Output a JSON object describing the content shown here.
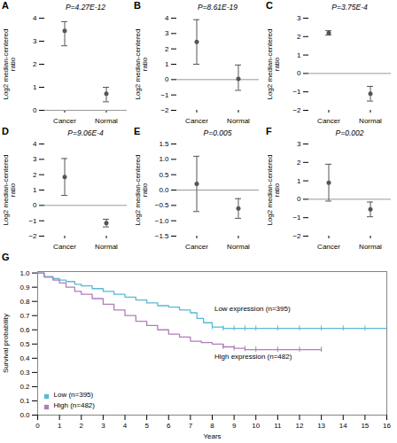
{
  "chart_data": [
    {
      "type": "errorbar",
      "title": "A",
      "subtitle": "P=4.27E-12",
      "ylabel": "Log2 median-centered\nratio",
      "categories": [
        "Cancer",
        "Normal"
      ],
      "values": [
        3.45,
        0.72
      ],
      "error_low": [
        0.65,
        0.35
      ],
      "error_high": [
        0.4,
        0.28
      ],
      "color": "#555555",
      "hline": 0,
      "ylim": [
        0,
        4
      ],
      "yticks": [
        0,
        1,
        2,
        3,
        4
      ]
    },
    {
      "type": "errorbar",
      "title": "B",
      "subtitle": "P=8.61E-19",
      "ylabel": "Log2 median-centered\nratio",
      "categories": [
        "Cancer",
        "Normal"
      ],
      "values": [
        2.45,
        0.05
      ],
      "error_low": [
        1.45,
        0.75
      ],
      "error_high": [
        1.45,
        0.9
      ],
      "color": "#555555",
      "hline": 0,
      "ylim": [
        -2,
        4
      ],
      "yticks": [
        -2,
        -1,
        0,
        1,
        2,
        3,
        4
      ]
    },
    {
      "type": "errorbar",
      "title": "C",
      "subtitle": "P=3.75E-4",
      "ylabel": "Log2 median-centered\nratio",
      "categories": [
        "Cancer",
        "Normal"
      ],
      "values": [
        2.2,
        -1.1
      ],
      "error_low": [
        0.12,
        0.4
      ],
      "error_high": [
        0.12,
        0.4
      ],
      "color": "#555555",
      "hline": 0,
      "ylim": [
        -2,
        3
      ],
      "yticks": [
        -2,
        -1,
        0,
        1,
        2,
        3
      ]
    },
    {
      "type": "errorbar",
      "title": "D",
      "subtitle": "P=9.06E-4",
      "ylabel": "Log2 median-centered\nratio",
      "categories": [
        "Cancer",
        "Normal"
      ],
      "values": [
        1.85,
        -1.15
      ],
      "error_low": [
        1.2,
        0.25
      ],
      "error_high": [
        1.2,
        0.25
      ],
      "color": "#555555",
      "hline": 0,
      "ylim": [
        -2,
        4
      ],
      "yticks": [
        -2,
        -1,
        0,
        1,
        2,
        3,
        4
      ]
    },
    {
      "type": "errorbar",
      "title": "E",
      "subtitle": "P=0.005",
      "ylabel": "Log2 median-centered\nratio",
      "categories": [
        "Cancer",
        "Normal"
      ],
      "values": [
        0.2,
        -0.6
      ],
      "error_low": [
        0.9,
        0.32
      ],
      "error_high": [
        0.9,
        0.32
      ],
      "color": "#555555",
      "hline": 0,
      "ylim": [
        -1.5,
        1.5
      ],
      "yticks": [
        -1.5,
        {
          "value": -1,
          "label": "−1.0"
        },
        -0.5,
        {
          "value": 0,
          "label": "0.0"
        },
        0.5,
        {
          "value": 1,
          "label": "1.0"
        },
        1.5
      ]
    },
    {
      "type": "errorbar",
      "title": "F",
      "subtitle": "P=0.002",
      "ylabel": "Log2 median-centered\nratio",
      "categories": [
        "Cancer",
        "Normal"
      ],
      "values": [
        0.9,
        -0.55
      ],
      "error_low": [
        1.0,
        0.4
      ],
      "error_high": [
        1.0,
        0.4
      ],
      "color": "#555555",
      "hline": 0,
      "ylim": [
        -2,
        3
      ],
      "yticks": [
        -2,
        -1,
        0,
        1,
        2,
        3
      ]
    },
    {
      "type": "step",
      "title": "G",
      "xlabel": "Years",
      "ylabel": "Survival probability",
      "xlim": [
        0,
        16
      ],
      "xticks": [
        0,
        1,
        2,
        3,
        4,
        5,
        6,
        7,
        8,
        9,
        10,
        11,
        12,
        13,
        14,
        15,
        16
      ],
      "ylim": [
        0,
        1.01
      ],
      "yticks": [
        {
          "value": 0,
          "label": "0.0"
        },
        0.1,
        0.2,
        0.3,
        0.4,
        0.5,
        0.6,
        0.7,
        0.8,
        0.9,
        {
          "value": 1,
          "label": "1.0"
        }
      ],
      "legend": "lower left",
      "series": [
        {
          "name": "Low (n=395)",
          "color": "#5BB8D4",
          "x": [
            0,
            0.3,
            0.7,
            1.0,
            1.3,
            1.7,
            2.0,
            2.5,
            3.0,
            3.5,
            4.0,
            4.5,
            5.0,
            5.5,
            6.0,
            6.5,
            7.0,
            7.3,
            7.6,
            8.0,
            8.5,
            9.0,
            10.0,
            11.0,
            12.0,
            13.0,
            14.0,
            15.0,
            16.0
          ],
          "values": [
            1.0,
            0.975,
            0.96,
            0.95,
            0.94,
            0.92,
            0.91,
            0.89,
            0.87,
            0.85,
            0.83,
            0.81,
            0.79,
            0.77,
            0.76,
            0.74,
            0.72,
            0.68,
            0.65,
            0.62,
            0.61,
            0.61,
            0.61,
            0.61,
            0.61,
            0.61,
            0.61,
            0.61,
            0.61
          ],
          "censor_x": [
            8.0,
            8.5,
            9.0,
            9.5,
            10.0,
            11.0,
            12.0,
            13.0,
            14.0,
            15.0,
            16.0
          ],
          "censor_y": [
            0.62,
            0.61,
            0.61,
            0.61,
            0.61,
            0.61,
            0.61,
            0.61,
            0.61,
            0.61,
            0.61
          ]
        },
        {
          "name": "High (n=482)",
          "color": "#B07DB8",
          "x": [
            0,
            0.3,
            0.7,
            1.0,
            1.3,
            1.7,
            2.0,
            2.5,
            3.0,
            3.5,
            4.0,
            4.5,
            5.0,
            5.5,
            6.0,
            6.5,
            7.0,
            7.5,
            8.0,
            8.5,
            9.0,
            9.5,
            10.0,
            11.0,
            12.0,
            13.0
          ],
          "values": [
            1.0,
            0.97,
            0.95,
            0.93,
            0.9,
            0.87,
            0.85,
            0.82,
            0.78,
            0.74,
            0.7,
            0.66,
            0.63,
            0.6,
            0.57,
            0.55,
            0.52,
            0.51,
            0.5,
            0.48,
            0.47,
            0.46,
            0.46,
            0.46,
            0.46,
            0.46
          ],
          "censor_x": [
            8.5,
            9.0,
            9.5,
            10.0,
            11.0,
            12.0,
            13.0
          ],
          "censor_y": [
            0.48,
            0.47,
            0.465,
            0.46,
            0.46,
            0.46,
            0.46
          ]
        }
      ],
      "annotations": [
        {
          "text": "Low expression (n=395)",
          "x": 8.1,
          "y": 0.75
        },
        {
          "text": "High expression (n=482)",
          "x": 8.1,
          "y": 0.41
        }
      ]
    }
  ]
}
